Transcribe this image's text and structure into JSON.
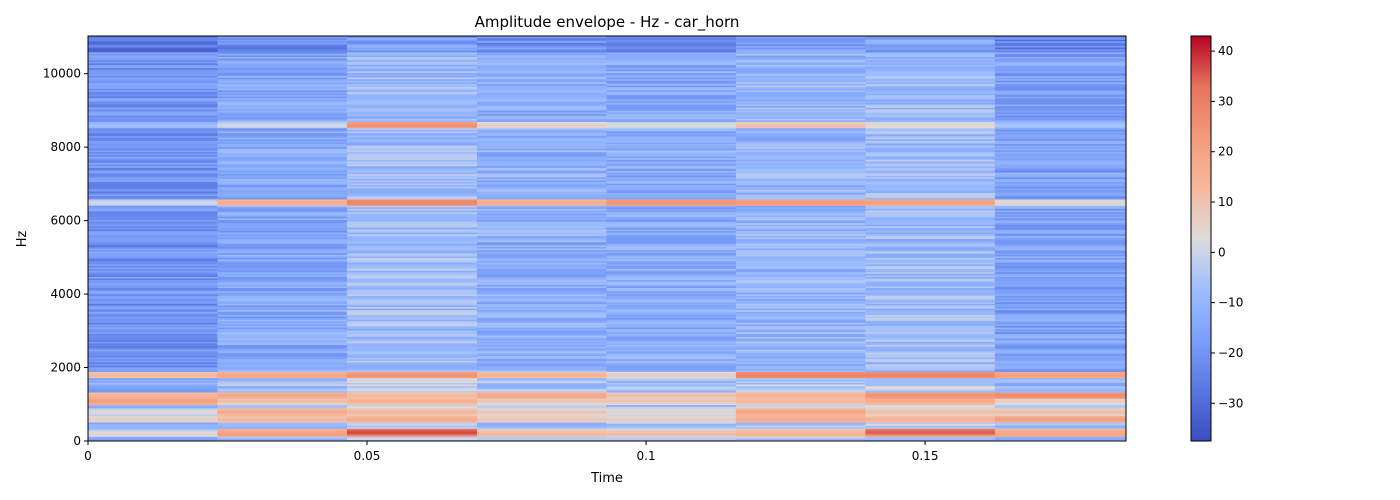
{
  "chart_data": {
    "type": "heatmap",
    "title": "Amplitude envelope - Hz - car_horn",
    "xlabel": "Time",
    "ylabel": "Hz",
    "x_ticks": [
      "0",
      "0.05",
      "0.1",
      "0.15"
    ],
    "x_tick_values": [
      0,
      0.05,
      0.1,
      0.15
    ],
    "y_ticks": [
      "0",
      "2000",
      "4000",
      "6000",
      "8000",
      "10000"
    ],
    "y_tick_values": [
      0,
      2000,
      4000,
      6000,
      8000,
      10000
    ],
    "xlim": [
      0,
      0.186
    ],
    "ylim": [
      0,
      11025
    ],
    "colormap": "coolwarm",
    "colorbar": {
      "ticks": [
        "40",
        "30",
        "20",
        "10",
        "0",
        "−10",
        "−20",
        "−30"
      ],
      "tick_values": [
        40,
        30,
        20,
        10,
        0,
        -10,
        -20,
        -30
      ],
      "range": [
        -37.5,
        43
      ]
    },
    "frames": 8,
    "frame_times": [
      0,
      0.0232,
      0.0464,
      0.0697,
      0.0929,
      0.1161,
      0.1393,
      0.1625,
      0.186
    ],
    "frame_base_db": [
      -20,
      -14,
      -8,
      -12,
      -13,
      -10,
      -8,
      -16
    ],
    "bands": [
      {
        "hz": 200,
        "db": [
          6,
          22,
          28,
          14,
          12,
          16,
          24,
          20
        ]
      },
      {
        "hz": 250,
        "db": [
          -2,
          20,
          38,
          12,
          10,
          14,
          36,
          18
        ]
      },
      {
        "hz": 600,
        "db": [
          8,
          14,
          18,
          10,
          8,
          18,
          16,
          22
        ]
      },
      {
        "hz": 800,
        "db": [
          4,
          18,
          14,
          10,
          6,
          20,
          12,
          12
        ]
      },
      {
        "hz": 1100,
        "db": [
          22,
          12,
          16,
          10,
          10,
          14,
          18,
          8
        ]
      },
      {
        "hz": 1250,
        "db": [
          16,
          20,
          14,
          20,
          12,
          16,
          26,
          28
        ]
      },
      {
        "hz": 1800,
        "db": [
          14,
          20,
          26,
          16,
          8,
          30,
          30,
          22
        ]
      },
      {
        "hz": 6500,
        "db": [
          2,
          18,
          30,
          18,
          26,
          24,
          22,
          6
        ]
      },
      {
        "hz": 8600,
        "db": [
          -6,
          2,
          26,
          8,
          4,
          12,
          6,
          -4
        ]
      }
    ]
  }
}
